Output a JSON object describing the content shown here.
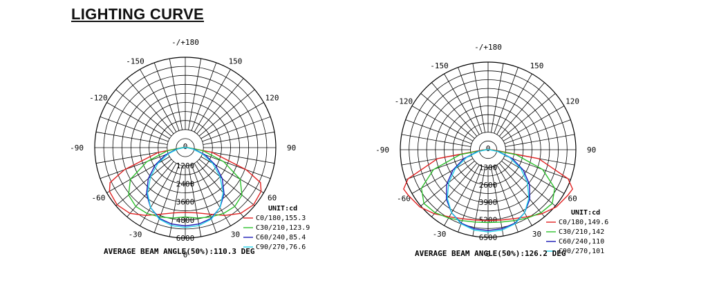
{
  "page": {
    "title": "LIGHTING CURVE"
  },
  "chart_data": [
    {
      "type": "polar",
      "title": "",
      "angle_labels": [
        "-/+180",
        "150",
        "120",
        "90",
        "60",
        "30",
        "0",
        "-30",
        "-60",
        "-90",
        "-120",
        "-150"
      ],
      "radial_ticks": [
        "0",
        "1200",
        "2400",
        "3600",
        "4800",
        "6000"
      ],
      "rmax": 6000,
      "unit_label": "UNIT:cd",
      "legend_position": "bottom-right",
      "series": [
        {
          "name": "C0/180,155.3",
          "color": "#e02020",
          "points": [
            [
              0,
              4300
            ],
            [
              10,
              4400
            ],
            [
              20,
              4700
            ],
            [
              30,
              5200
            ],
            [
              40,
              5700
            ],
            [
              50,
              5900
            ],
            [
              60,
              5800
            ],
            [
              65,
              5500
            ],
            [
              70,
              4300
            ],
            [
              80,
              1800
            ],
            [
              90,
              200
            ]
          ]
        },
        {
          "name": "C30/210,123.9",
          "color": "#2bc02b",
          "points": [
            [
              0,
              4600
            ],
            [
              10,
              4750
            ],
            [
              20,
              4900
            ],
            [
              30,
              5050
            ],
            [
              40,
              5100
            ],
            [
              50,
              4900
            ],
            [
              60,
              4200
            ],
            [
              70,
              2700
            ],
            [
              80,
              1200
            ],
            [
              90,
              200
            ]
          ]
        },
        {
          "name": "C60/240,85.4",
          "color": "#1a1ab5",
          "points": [
            [
              0,
              5200
            ],
            [
              10,
              5150
            ],
            [
              20,
              5000
            ],
            [
              30,
              4600
            ],
            [
              40,
              4000
            ],
            [
              50,
              3200
            ],
            [
              60,
              2300
            ],
            [
              70,
              1400
            ],
            [
              80,
              600
            ],
            [
              90,
              100
            ]
          ]
        },
        {
          "name": "C90/270,76.6",
          "color": "#22d0e8",
          "points": [
            [
              0,
              5300
            ],
            [
              10,
              5250
            ],
            [
              20,
              5050
            ],
            [
              30,
              4600
            ],
            [
              40,
              3900
            ],
            [
              50,
              3000
            ],
            [
              60,
              2100
            ],
            [
              70,
              1200
            ],
            [
              80,
              500
            ],
            [
              90,
              100
            ]
          ]
        }
      ],
      "caption": "AVERAGE BEAM ANGLE(50%):110.3 DEG"
    },
    {
      "type": "polar",
      "title": "",
      "angle_labels": [
        "-/+180",
        "150",
        "120",
        "90",
        "60",
        "30",
        "0",
        "-30",
        "-60",
        "-90",
        "-120",
        "-150"
      ],
      "radial_ticks": [
        "0",
        "1300",
        "2600",
        "3900",
        "5200",
        "6500"
      ],
      "rmax": 6500,
      "unit_label": "UNIT:cd",
      "legend_position": "bottom-right",
      "series": [
        {
          "name": "C0/180,149.6",
          "color": "#e02020",
          "points": [
            [
              0,
              5250
            ],
            [
              10,
              5300
            ],
            [
              20,
              5450
            ],
            [
              30,
              5750
            ],
            [
              40,
              6200
            ],
            [
              50,
              6600
            ],
            [
              60,
              6800
            ],
            [
              65,
              6900
            ],
            [
              70,
              6300
            ],
            [
              80,
              3800
            ],
            [
              88,
              400
            ]
          ]
        },
        {
          "name": "C30/210,142",
          "color": "#2bc02b",
          "points": [
            [
              0,
              5400
            ],
            [
              10,
              5450
            ],
            [
              20,
              5600
            ],
            [
              30,
              5850
            ],
            [
              40,
              6100
            ],
            [
              50,
              6200
            ],
            [
              60,
              5700
            ],
            [
              70,
              4300
            ],
            [
              80,
              2100
            ],
            [
              90,
              200
            ]
          ]
        },
        {
          "name": "C60/240,110",
          "color": "#1a1ab5",
          "points": [
            [
              0,
              6000
            ],
            [
              10,
              5950
            ],
            [
              20,
              5800
            ],
            [
              30,
              5400
            ],
            [
              40,
              4800
            ],
            [
              50,
              4000
            ],
            [
              60,
              3000
            ],
            [
              70,
              1900
            ],
            [
              80,
              800
            ],
            [
              90,
              100
            ]
          ]
        },
        {
          "name": "C90/270,101",
          "color": "#22d0e8",
          "points": [
            [
              0,
              6100
            ],
            [
              10,
              6050
            ],
            [
              20,
              5850
            ],
            [
              30,
              5400
            ],
            [
              40,
              4700
            ],
            [
              50,
              3800
            ],
            [
              60,
              2800
            ],
            [
              70,
              1700
            ],
            [
              80,
              700
            ],
            [
              90,
              100
            ]
          ]
        }
      ],
      "caption": "AVERAGE BEAM ANGLE(50%):126.2 DEG"
    }
  ]
}
